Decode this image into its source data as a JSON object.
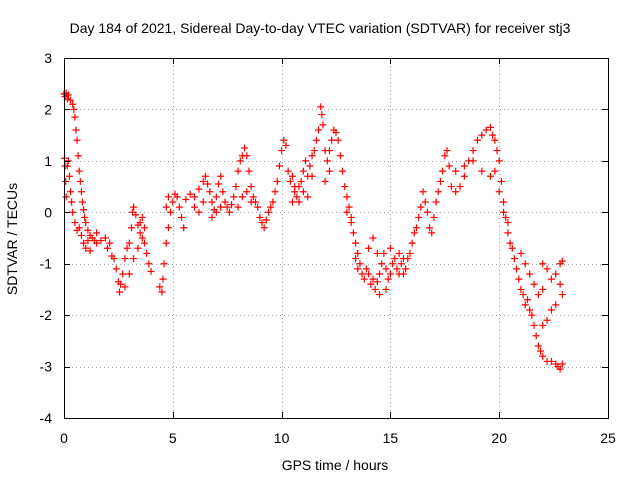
{
  "chart_data": {
    "type": "scatter",
    "title": "Day 184 of 2021, Sidereal Day-to-day VTEC variation (SDTVAR) for receiver stj3",
    "xlabel": "GPS time / hours",
    "ylabel": "SDTVAR / TECUs",
    "xlim": [
      0,
      25
    ],
    "ylim": [
      -4,
      3
    ],
    "x_ticks": [
      0,
      5,
      10,
      15,
      20,
      25
    ],
    "y_ticks": [
      -4,
      -3,
      -2,
      -1,
      0,
      1,
      2,
      3
    ],
    "grid": true,
    "marker": "+",
    "color": "#ff0000",
    "series": [
      {
        "name": "SDTVAR",
        "points": [
          [
            0.0,
            2.3
          ],
          [
            0.05,
            2.25
          ],
          [
            0.1,
            2.32
          ],
          [
            0.15,
            2.2
          ],
          [
            0.2,
            2.28
          ],
          [
            0.3,
            2.18
          ],
          [
            0.4,
            2.1
          ],
          [
            0.45,
            2.0
          ],
          [
            0.5,
            1.85
          ],
          [
            0.55,
            1.6
          ],
          [
            0.6,
            1.4
          ],
          [
            0.65,
            1.1
          ],
          [
            0.7,
            0.8
          ],
          [
            0.75,
            0.6
          ],
          [
            0.8,
            0.4
          ],
          [
            0.85,
            0.2
          ],
          [
            0.9,
            0.05
          ],
          [
            0.95,
            -0.1
          ],
          [
            1.0,
            -0.2
          ],
          [
            1.1,
            -0.35
          ],
          [
            1.2,
            -0.45
          ],
          [
            1.3,
            -0.5
          ],
          [
            1.4,
            -0.55
          ],
          [
            1.5,
            -0.6
          ],
          [
            0.02,
            1.05
          ],
          [
            0.05,
            0.9
          ],
          [
            0.08,
            0.6
          ],
          [
            0.1,
            0.3
          ],
          [
            0.15,
            0.9
          ],
          [
            0.2,
            1.0
          ],
          [
            0.25,
            0.7
          ],
          [
            0.3,
            0.4
          ],
          [
            0.35,
            0.2
          ],
          [
            0.4,
            0.0
          ],
          [
            0.5,
            -0.2
          ],
          [
            0.6,
            -0.35
          ],
          [
            0.7,
            -0.3
          ],
          [
            0.8,
            -0.45
          ],
          [
            0.9,
            -0.6
          ],
          [
            1.0,
            -0.7
          ],
          [
            1.1,
            -0.55
          ],
          [
            1.2,
            -0.75
          ],
          [
            1.5,
            -0.4
          ],
          [
            1.7,
            -0.55
          ],
          [
            1.9,
            -0.5
          ],
          [
            2.0,
            -0.7
          ],
          [
            2.1,
            -0.6
          ],
          [
            2.2,
            -0.85
          ],
          [
            2.3,
            -0.9
          ],
          [
            2.4,
            -1.1
          ],
          [
            2.5,
            -1.35
          ],
          [
            2.55,
            -1.55
          ],
          [
            2.6,
            -1.4
          ],
          [
            2.7,
            -1.2
          ],
          [
            2.8,
            -0.9
          ],
          [
            2.9,
            -0.7
          ],
          [
            3.0,
            -0.6
          ],
          [
            3.1,
            -0.3
          ],
          [
            3.15,
            0.0
          ],
          [
            3.2,
            0.1
          ],
          [
            3.3,
            -0.05
          ],
          [
            3.4,
            -0.25
          ],
          [
            3.5,
            -0.4
          ],
          [
            3.6,
            -0.5
          ],
          [
            3.7,
            -0.6
          ],
          [
            3.8,
            -0.8
          ],
          [
            3.9,
            -1.0
          ],
          [
            4.0,
            -1.15
          ],
          [
            3.2,
            -0.9
          ],
          [
            3.0,
            -1.2
          ],
          [
            2.8,
            -1.45
          ],
          [
            3.4,
            -0.7
          ],
          [
            3.5,
            -0.2
          ],
          [
            3.6,
            -0.1
          ],
          [
            3.7,
            -0.3
          ],
          [
            4.4,
            -1.45
          ],
          [
            4.5,
            -1.55
          ],
          [
            4.55,
            -1.3
          ],
          [
            4.6,
            -1.0
          ],
          [
            4.7,
            -0.6
          ],
          [
            4.8,
            -0.3
          ],
          [
            4.9,
            0.0
          ],
          [
            5.0,
            0.2
          ],
          [
            5.1,
            0.35
          ],
          [
            5.2,
            0.3
          ],
          [
            5.3,
            0.1
          ],
          [
            5.4,
            -0.1
          ],
          [
            5.5,
            -0.3
          ],
          [
            4.7,
            0.1
          ],
          [
            4.8,
            0.3
          ],
          [
            5.6,
            0.25
          ],
          [
            5.8,
            0.35
          ],
          [
            6.0,
            0.3
          ],
          [
            6.2,
            0.45
          ],
          [
            6.4,
            0.6
          ],
          [
            6.5,
            0.7
          ],
          [
            6.6,
            0.55
          ],
          [
            6.7,
            0.4
          ],
          [
            6.8,
            0.2
          ],
          [
            6.9,
            0.05
          ],
          [
            7.0,
            0.3
          ],
          [
            7.1,
            0.55
          ],
          [
            7.2,
            0.7
          ],
          [
            7.3,
            0.4
          ],
          [
            7.4,
            0.2
          ],
          [
            7.5,
            0.1
          ],
          [
            7.6,
            0.0
          ],
          [
            7.7,
            0.15
          ],
          [
            6.0,
            0.1
          ],
          [
            6.2,
            0.0
          ],
          [
            6.4,
            0.2
          ],
          [
            6.8,
            -0.1
          ],
          [
            7.0,
            0.0
          ],
          [
            7.2,
            0.1
          ],
          [
            7.8,
            0.3
          ],
          [
            7.9,
            0.5
          ],
          [
            8.0,
            0.8
          ],
          [
            8.1,
            1.0
          ],
          [
            8.2,
            1.1
          ],
          [
            8.3,
            1.25
          ],
          [
            8.4,
            1.1
          ],
          [
            8.5,
            0.8
          ],
          [
            8.6,
            0.5
          ],
          [
            8.7,
            0.3
          ],
          [
            8.8,
            0.2
          ],
          [
            8.9,
            0.1
          ],
          [
            9.0,
            -0.1
          ],
          [
            9.1,
            -0.2
          ],
          [
            9.2,
            -0.3
          ],
          [
            9.3,
            -0.15
          ],
          [
            9.4,
            0.0
          ],
          [
            9.5,
            0.1
          ],
          [
            8.0,
            0.1
          ],
          [
            8.2,
            0.3
          ],
          [
            8.4,
            0.4
          ],
          [
            8.6,
            0.2
          ],
          [
            9.6,
            0.2
          ],
          [
            9.7,
            0.4
          ],
          [
            9.8,
            0.6
          ],
          [
            9.9,
            0.9
          ],
          [
            10.0,
            1.2
          ],
          [
            10.1,
            1.4
          ],
          [
            10.2,
            1.3
          ],
          [
            10.3,
            0.8
          ],
          [
            10.4,
            0.6
          ],
          [
            10.5,
            0.7
          ],
          [
            10.6,
            0.5
          ],
          [
            10.7,
            0.3
          ],
          [
            10.8,
            0.2
          ],
          [
            10.9,
            0.6
          ],
          [
            11.0,
            0.8
          ],
          [
            11.1,
            1.0
          ],
          [
            11.2,
            0.7
          ],
          [
            11.3,
            0.9
          ],
          [
            11.4,
            1.1
          ],
          [
            11.5,
            1.2
          ],
          [
            10.5,
            0.2
          ],
          [
            10.6,
            0.4
          ],
          [
            10.8,
            0.5
          ],
          [
            11.0,
            0.4
          ],
          [
            11.2,
            0.3
          ],
          [
            11.4,
            0.7
          ],
          [
            11.6,
            1.4
          ],
          [
            11.7,
            1.6
          ],
          [
            11.8,
            2.05
          ],
          [
            11.85,
            1.9
          ],
          [
            11.9,
            1.7
          ],
          [
            12.0,
            1.2
          ],
          [
            12.1,
            1.0
          ],
          [
            12.2,
            1.2
          ],
          [
            12.3,
            1.4
          ],
          [
            12.4,
            1.6
          ],
          [
            12.5,
            1.55
          ],
          [
            12.6,
            1.4
          ],
          [
            12.7,
            1.1
          ],
          [
            12.8,
            0.8
          ],
          [
            12.9,
            0.5
          ],
          [
            13.0,
            0.3
          ],
          [
            13.1,
            0.1
          ],
          [
            13.2,
            -0.1
          ],
          [
            13.3,
            -0.4
          ],
          [
            13.4,
            -0.6
          ],
          [
            13.5,
            -0.8
          ],
          [
            13.6,
            -1.0
          ],
          [
            12.0,
            0.6
          ],
          [
            12.2,
            0.8
          ],
          [
            13.0,
            0.0
          ],
          [
            13.2,
            -0.2
          ],
          [
            13.4,
            -0.9
          ],
          [
            13.5,
            -1.1
          ],
          [
            13.7,
            -1.2
          ],
          [
            13.8,
            -1.3
          ],
          [
            13.9,
            -1.1
          ],
          [
            14.0,
            -1.2
          ],
          [
            14.1,
            -1.4
          ],
          [
            14.2,
            -1.3
          ],
          [
            14.3,
            -1.5
          ],
          [
            14.4,
            -1.35
          ],
          [
            14.5,
            -1.2
          ],
          [
            14.6,
            -1.0
          ],
          [
            14.7,
            -0.8
          ],
          [
            14.8,
            -1.1
          ],
          [
            14.9,
            -1.3
          ],
          [
            15.0,
            -1.2
          ],
          [
            15.1,
            -1.0
          ],
          [
            15.2,
            -0.9
          ],
          [
            15.3,
            -1.1
          ],
          [
            15.4,
            -1.2
          ],
          [
            15.5,
            -1.0
          ],
          [
            15.6,
            -0.9
          ],
          [
            14.0,
            -0.7
          ],
          [
            14.2,
            -0.5
          ],
          [
            14.4,
            -0.8
          ],
          [
            14.5,
            -1.6
          ],
          [
            14.8,
            -1.5
          ],
          [
            15.0,
            -0.7
          ],
          [
            15.4,
            -0.8
          ],
          [
            15.6,
            -1.2
          ],
          [
            15.7,
            -1.1
          ],
          [
            15.8,
            -0.9
          ],
          [
            15.9,
            -0.8
          ],
          [
            16.0,
            -0.6
          ],
          [
            16.1,
            -0.4
          ],
          [
            16.2,
            -0.3
          ],
          [
            16.3,
            -0.1
          ],
          [
            16.4,
            0.1
          ],
          [
            16.5,
            0.4
          ],
          [
            16.6,
            0.2
          ],
          [
            16.7,
            0.0
          ],
          [
            16.8,
            -0.3
          ],
          [
            16.9,
            -0.4
          ],
          [
            17.0,
            -0.1
          ],
          [
            17.1,
            0.2
          ],
          [
            17.2,
            0.4
          ],
          [
            17.3,
            0.6
          ],
          [
            17.4,
            0.8
          ],
          [
            17.5,
            1.1
          ],
          [
            17.6,
            1.2
          ],
          [
            17.7,
            0.9
          ],
          [
            17.8,
            0.5
          ],
          [
            18.0,
            0.4
          ],
          [
            18.2,
            0.5
          ],
          [
            18.4,
            0.7
          ],
          [
            18.6,
            1.0
          ],
          [
            18.8,
            1.2
          ],
          [
            19.0,
            1.4
          ],
          [
            19.2,
            1.5
          ],
          [
            19.4,
            1.6
          ],
          [
            19.6,
            1.65
          ],
          [
            19.7,
            1.5
          ],
          [
            19.8,
            1.4
          ],
          [
            19.9,
            1.2
          ],
          [
            20.0,
            1.0
          ],
          [
            20.1,
            0.6
          ],
          [
            20.2,
            0.2
          ],
          [
            20.3,
            -0.1
          ],
          [
            20.4,
            -0.4
          ],
          [
            20.5,
            -0.6
          ],
          [
            18.0,
            0.8
          ],
          [
            18.4,
            0.9
          ],
          [
            18.8,
            1.0
          ],
          [
            19.2,
            0.8
          ],
          [
            19.6,
            0.7
          ],
          [
            19.8,
            0.8
          ],
          [
            20.0,
            0.4
          ],
          [
            20.2,
            0.0
          ],
          [
            20.4,
            -0.2
          ],
          [
            20.6,
            -0.7
          ],
          [
            20.7,
            -0.9
          ],
          [
            20.8,
            -1.1
          ],
          [
            20.9,
            -1.3
          ],
          [
            21.0,
            -1.5
          ],
          [
            21.1,
            -1.6
          ],
          [
            21.2,
            -1.8
          ],
          [
            21.3,
            -1.7
          ],
          [
            21.4,
            -1.9
          ],
          [
            21.5,
            -2.0
          ],
          [
            21.6,
            -2.2
          ],
          [
            21.7,
            -2.4
          ],
          [
            21.8,
            -2.6
          ],
          [
            21.9,
            -2.7
          ],
          [
            22.0,
            -2.8
          ],
          [
            21.0,
            -0.8
          ],
          [
            21.2,
            -1.0
          ],
          [
            21.4,
            -1.2
          ],
          [
            21.6,
            -1.4
          ],
          [
            21.8,
            -1.6
          ],
          [
            22.0,
            -1.5
          ],
          [
            22.2,
            -2.9
          ],
          [
            22.4,
            -2.9
          ],
          [
            22.6,
            -2.95
          ],
          [
            22.7,
            -3.0
          ],
          [
            22.8,
            -3.05
          ],
          [
            22.9,
            -2.95
          ],
          [
            22.0,
            -1.0
          ],
          [
            22.2,
            -1.1
          ],
          [
            22.4,
            -1.3
          ],
          [
            22.6,
            -1.2
          ],
          [
            22.8,
            -1.0
          ],
          [
            22.9,
            -0.95
          ],
          [
            22.0,
            -2.2
          ],
          [
            22.2,
            -2.1
          ],
          [
            22.4,
            -1.9
          ],
          [
            22.6,
            -1.8
          ],
          [
            22.8,
            -1.4
          ],
          [
            22.9,
            -1.6
          ]
        ]
      }
    ]
  }
}
